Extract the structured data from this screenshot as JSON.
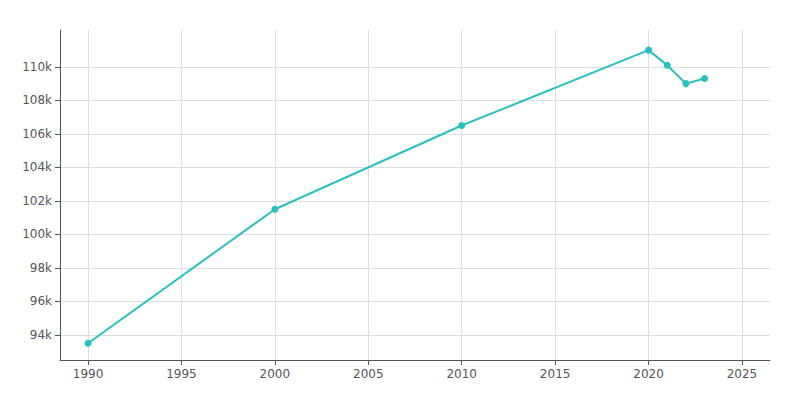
{
  "chart_data": {
    "type": "line",
    "x": [
      1990,
      2000,
      2010,
      2020,
      2021,
      2022,
      2023
    ],
    "values": [
      93500,
      101500,
      106500,
      111000,
      110100,
      109000,
      109300
    ],
    "color": "#2ABFBF",
    "marker": "circle",
    "xlim": [
      1988.5,
      2026.5
    ],
    "ylim": [
      92500,
      112200
    ],
    "xticks": [
      1990,
      1995,
      2000,
      2005,
      2010,
      2015,
      2020,
      2025
    ],
    "yticks": [
      {
        "value": 94000,
        "label": "94k"
      },
      {
        "value": 96000,
        "label": "96k"
      },
      {
        "value": 98000,
        "label": "98k"
      },
      {
        "value": 100000,
        "label": "100k"
      },
      {
        "value": 102000,
        "label": "102k"
      },
      {
        "value": 104000,
        "label": "104k"
      },
      {
        "value": 106000,
        "label": "106k"
      },
      {
        "value": 108000,
        "label": "108k"
      },
      {
        "value": 110000,
        "label": "110k"
      }
    ],
    "grid": true
  }
}
